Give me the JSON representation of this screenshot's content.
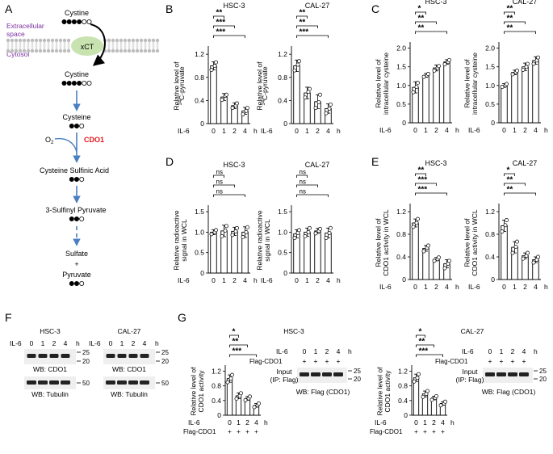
{
  "panel_letters": {
    "A": "A",
    "B": "B",
    "C": "C",
    "D": "D",
    "E": "E",
    "F": "F",
    "G": "G"
  },
  "pathway": {
    "extracellular": [
      "Extracellular",
      "space"
    ],
    "cytosol": "Cytosol",
    "cystine_top": "Cystine",
    "transporter": "xCT",
    "cystine_in": "Cystine",
    "cysteine": "Cysteine",
    "o2": "O",
    "o2_sub": "2",
    "enzyme": "CDO1",
    "sulfinic": "Cysteine Sulfinic Acid",
    "sulfinyl": "3-Sulfinyl Pyruvate",
    "sulfate": "Sulfate",
    "plus": "+",
    "pyruvate": "Pyruvate",
    "colors": {
      "membrane": "#c8c8c8",
      "xct": "#c9e3b0",
      "arrow": "#4a7fc1",
      "enzyme": "#e3161b",
      "space_label": "#7a2fa0"
    }
  },
  "common": {
    "il6": "IL-6",
    "x_ticks": [
      "0",
      "1",
      "2",
      "4"
    ],
    "hours": "h",
    "sig": {
      "p1": "*",
      "p2": "**",
      "p3": "***",
      "ns": "ns"
    }
  },
  "chart_data": [
    {
      "id": "B1",
      "type": "bar",
      "title": "HSC-3",
      "ylabel": [
        "Relative level of",
        "14",
        "C-pyruvate"
      ],
      "yticks": [
        "0",
        "0.4",
        "0.8",
        "1.2"
      ],
      "ylim": [
        0,
        1.3
      ],
      "categories": [
        "0",
        "1",
        "2",
        "4"
      ],
      "values": [
        1.0,
        0.46,
        0.31,
        0.22
      ],
      "errors": [
        0.07,
        0.06,
        0.05,
        0.06
      ],
      "points": [
        [
          0.93,
          1.0,
          1.06
        ],
        [
          0.41,
          0.48,
          0.5
        ],
        [
          0.27,
          0.31,
          0.35
        ],
        [
          0.16,
          0.22,
          0.27
        ]
      ],
      "sig": [
        "**",
        "***",
        "***"
      ]
    },
    {
      "id": "B2",
      "type": "bar",
      "title": "CAL-27",
      "ylabel": [
        "Relative level of",
        "14",
        "C-pyruvate"
      ],
      "yticks": [
        "0",
        "0.4",
        "0.8",
        "1.2"
      ],
      "ylim": [
        0,
        1.3
      ],
      "categories": [
        "0",
        "1",
        "2",
        "4"
      ],
      "values": [
        1.0,
        0.53,
        0.38,
        0.26
      ],
      "errors": [
        0.1,
        0.1,
        0.12,
        0.08
      ],
      "points": [
        [
          0.92,
          1.02,
          1.08
        ],
        [
          0.45,
          0.55,
          0.6
        ],
        [
          0.27,
          0.37,
          0.5
        ],
        [
          0.18,
          0.26,
          0.33
        ]
      ],
      "sig": [
        "**",
        "**",
        "***"
      ]
    },
    {
      "id": "C1",
      "type": "bar",
      "title": "HSC-3",
      "ylabel": [
        "Relative level of",
        "intracellular cysteine"
      ],
      "yticks": [
        "0",
        "0.5",
        "1.0",
        "1.5",
        "2.0"
      ],
      "ylim": [
        0,
        2.1
      ],
      "categories": [
        "0",
        "1",
        "2",
        "4"
      ],
      "values": [
        0.95,
        1.27,
        1.47,
        1.63
      ],
      "errors": [
        0.15,
        0.05,
        0.08,
        0.06
      ],
      "points": [
        [
          0.82,
          0.96,
          1.07
        ],
        [
          1.23,
          1.27,
          1.31
        ],
        [
          1.4,
          1.47,
          1.52
        ],
        [
          1.57,
          1.63,
          1.68
        ]
      ],
      "sig": [
        "*",
        "**",
        "**"
      ]
    },
    {
      "id": "C2",
      "type": "bar",
      "title": "CAL-27",
      "ylabel": [
        "Relative level of",
        "intracellular cysteine"
      ],
      "yticks": [
        "0",
        "0.5",
        "1.0",
        "1.5",
        "2.0"
      ],
      "ylim": [
        0,
        2.1
      ],
      "categories": [
        "0",
        "1",
        "2",
        "4"
      ],
      "values": [
        1.0,
        1.35,
        1.5,
        1.67
      ],
      "errors": [
        0.05,
        0.06,
        0.1,
        0.1
      ],
      "points": [
        [
          0.96,
          1.0,
          1.04
        ],
        [
          1.3,
          1.35,
          1.4
        ],
        [
          1.42,
          1.5,
          1.58
        ],
        [
          1.58,
          1.67,
          1.75
        ]
      ],
      "sig": [
        "**",
        "**",
        "**"
      ]
    },
    {
      "id": "D1",
      "type": "bar",
      "title": "HSC-3",
      "ylabel": [
        "Relative radioactive",
        "signal in WCL"
      ],
      "yticks": [
        "0",
        "0.5",
        "1.0",
        "1.5"
      ],
      "ylim": [
        0,
        1.6
      ],
      "categories": [
        "0",
        "1",
        "2",
        "4"
      ],
      "values": [
        1.0,
        1.03,
        1.02,
        1.0
      ],
      "errors": [
        0.06,
        0.14,
        0.1,
        0.13
      ],
      "points": [
        [
          0.95,
          1.0,
          1.05
        ],
        [
          0.9,
          1.04,
          1.15
        ],
        [
          0.93,
          1.02,
          1.1
        ],
        [
          0.88,
          1.0,
          1.12
        ]
      ],
      "sig": [
        "ns",
        "ns",
        "ns"
      ]
    },
    {
      "id": "D2",
      "type": "bar",
      "title": "CAL-27",
      "ylabel": [
        "Relative radioactive",
        "signal in WCL"
      ],
      "yticks": [
        "0",
        "0.5",
        "1.0",
        "1.5"
      ],
      "ylim": [
        0,
        1.6
      ],
      "categories": [
        "0",
        "1",
        "2",
        "4"
      ],
      "values": [
        0.96,
        1.0,
        1.03,
        0.98
      ],
      "errors": [
        0.1,
        0.1,
        0.06,
        0.12
      ],
      "points": [
        [
          0.86,
          0.98,
          1.05
        ],
        [
          0.9,
          1.0,
          1.1
        ],
        [
          0.97,
          1.03,
          1.08
        ],
        [
          0.86,
          0.98,
          1.1
        ]
      ],
      "sig": [
        "ns",
        "ns",
        "ns"
      ]
    },
    {
      "id": "E1",
      "type": "bar",
      "title": "HSC-3",
      "ylabel": [
        "Relative level of",
        "CDO1 activity in WCL"
      ],
      "yticks": [
        "0",
        "0.4",
        "0.8",
        "1.2"
      ],
      "ylim": [
        0,
        1.3
      ],
      "categories": [
        "0",
        "1",
        "2",
        "4"
      ],
      "values": [
        1.0,
        0.55,
        0.36,
        0.28
      ],
      "errors": [
        0.07,
        0.05,
        0.03,
        0.07
      ],
      "points": [
        [
          0.93,
          1.0,
          1.07
        ],
        [
          0.5,
          0.56,
          0.6
        ],
        [
          0.33,
          0.36,
          0.39
        ],
        [
          0.2,
          0.28,
          0.33
        ]
      ],
      "sig": [
        "**",
        "***",
        "***"
      ]
    },
    {
      "id": "E2",
      "type": "bar",
      "title": "CAL-27",
      "ylabel": [
        "Relative level of",
        "CDO1 activity in WCL"
      ],
      "yticks": [
        "0",
        "0.4",
        "0.8",
        "1.2"
      ],
      "ylim": [
        0,
        1.3
      ],
      "categories": [
        "0",
        "1",
        "2",
        "4"
      ],
      "values": [
        0.95,
        0.57,
        0.42,
        0.35
      ],
      "errors": [
        0.1,
        0.1,
        0.05,
        0.05
      ],
      "points": [
        [
          0.85,
          0.96,
          1.05
        ],
        [
          0.47,
          0.58,
          0.67
        ],
        [
          0.37,
          0.42,
          0.47
        ],
        [
          0.3,
          0.35,
          0.4
        ]
      ],
      "sig": [
        "*",
        "**",
        "**"
      ]
    },
    {
      "id": "G1",
      "type": "bar",
      "title": "",
      "ylabel": [
        "Relative level of",
        "CDO1 activity"
      ],
      "yticks": [
        "0",
        "0.4",
        "0.8",
        "1.2"
      ],
      "ylim": [
        0,
        1.3
      ],
      "categories": [
        "0",
        "1",
        "2",
        "4"
      ],
      "values": [
        1.0,
        0.53,
        0.46,
        0.27
      ],
      "errors": [
        0.1,
        0.08,
        0.05,
        0.05
      ],
      "points": [
        [
          0.9,
          1.0,
          1.1
        ],
        [
          0.45,
          0.53,
          0.6
        ],
        [
          0.41,
          0.46,
          0.51
        ],
        [
          0.22,
          0.27,
          0.32
        ]
      ],
      "sig": [
        "*",
        "**",
        "***"
      ]
    },
    {
      "id": "G2",
      "type": "bar",
      "title": "",
      "ylabel": [
        "Relative level of",
        "CDO1 activity"
      ],
      "yticks": [
        "0",
        "0.4",
        "0.8",
        "1.2"
      ],
      "ylim": [
        0,
        1.3
      ],
      "categories": [
        "0",
        "1",
        "2",
        "4"
      ],
      "values": [
        1.02,
        0.58,
        0.47,
        0.32
      ],
      "errors": [
        0.1,
        0.08,
        0.05,
        0.05
      ],
      "points": [
        [
          0.92,
          1.02,
          1.12
        ],
        [
          0.5,
          0.58,
          0.66
        ],
        [
          0.42,
          0.47,
          0.52
        ],
        [
          0.27,
          0.32,
          0.37
        ]
      ],
      "sig": [
        "*",
        "**",
        "***"
      ]
    }
  ],
  "blots_F": {
    "hsc_title": "HSC-3",
    "cal_title": "CAL-27",
    "cdo1_label": "WB: CDO1",
    "tubulin_label": "WB: Tubulin",
    "mw": {
      "m25": "25",
      "m20": "20",
      "m50": "50"
    }
  },
  "panel_G": {
    "hsc_title": "HSC-3",
    "cal_title": "CAL-27",
    "flag_row": "Flag-CDO1",
    "plus": "+",
    "input_label": [
      "Input",
      "(IP: Flag)"
    ],
    "wb_flag": "WB: Flag (CDO1)",
    "mw": {
      "m25": "25",
      "m20": "20"
    }
  }
}
